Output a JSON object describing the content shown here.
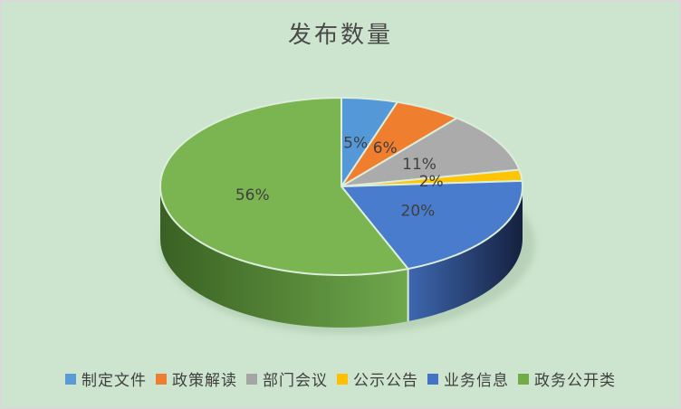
{
  "window": {
    "background": "#CDE5CE",
    "frame_border_color": "#D9D9D9"
  },
  "chart_data": {
    "type": "pie",
    "three_d": true,
    "title": "发布数量",
    "legend_position": "bottom",
    "categories": [
      "制定文件",
      "政策解读",
      "部门会议",
      "公示公告",
      "业务信息",
      "政务公开类"
    ],
    "values": [
      5,
      6,
      11,
      2,
      20,
      56
    ],
    "series": [
      {
        "label": "制定文件",
        "value": 5,
        "display": "5%",
        "color": "#5B9BD5",
        "top_color": "#5598D8"
      },
      {
        "label": "政策解读",
        "value": 6,
        "display": "6%",
        "color": "#ED7D31",
        "top_color": "#F07E2F"
      },
      {
        "label": "部门会议",
        "value": 11,
        "display": "11%",
        "color": "#A5A5A5",
        "top_color": "#ABABAB"
      },
      {
        "label": "公示公告",
        "value": 2,
        "display": "2%",
        "color": "#FFC000",
        "top_color": "#FFC402"
      },
      {
        "label": "业务信息",
        "value": 20,
        "display": "20%",
        "color": "#4472C4",
        "top_color": "#4A7CCE",
        "side_from": "#3E68B0",
        "side_to": "#15203F"
      },
      {
        "label": "政务公开类",
        "value": 56,
        "display": "56%",
        "color": "#70AD47",
        "top_color": "#7AB551",
        "side_from": "#3A6123",
        "side_to": "#6FA84C"
      }
    ],
    "title_color": "#4A4A4A",
    "label_color": "#3F3F3F",
    "separator_color": "#DCEEDA",
    "shadow_color": "#8FAE90"
  }
}
